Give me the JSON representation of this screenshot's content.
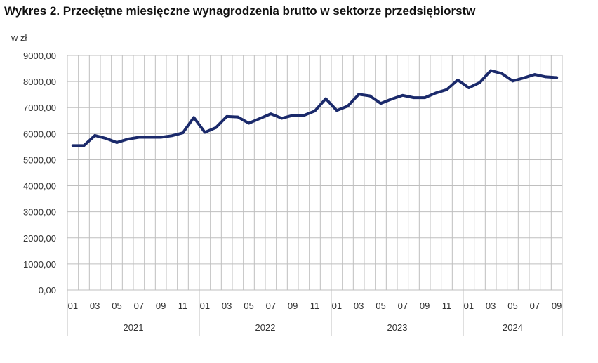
{
  "chart_data": {
    "type": "line",
    "title": "Wykres 2. Przeciętne miesięczne wynagrodzenia brutto w sektorze przedsiębiorstw",
    "ylabel": "w zł",
    "ylim": [
      0,
      9000
    ],
    "y_ticks": [
      "0,00",
      "1000,00",
      "2000,00",
      "3000,00",
      "4000,00",
      "5000,00",
      "6000,00",
      "7000,00",
      "8000,00",
      "9000,00"
    ],
    "x_tick_labels": [
      "01",
      "03",
      "05",
      "07",
      "09",
      "11"
    ],
    "last_year_tick_labels": [
      "01",
      "03",
      "05",
      "07",
      "09"
    ],
    "years": [
      "2021",
      "2022",
      "2023",
      "2024"
    ],
    "grid": true,
    "line_color": "#1b2a6b",
    "series": [
      {
        "values": [
          5540,
          5540,
          5930,
          5820,
          5660,
          5790,
          5860,
          5860,
          5860,
          5920,
          6030,
          6620,
          6050,
          6230,
          6660,
          6640,
          6400,
          6580,
          6760,
          6590,
          6700,
          6700,
          6870,
          7340,
          6890,
          7060,
          7510,
          7450,
          7160,
          7330,
          7470,
          7380,
          7380,
          7560,
          7690,
          8060,
          7760,
          7960,
          8420,
          8310,
          8020,
          8140,
          8270,
          8180,
          8150
        ]
      }
    ]
  }
}
